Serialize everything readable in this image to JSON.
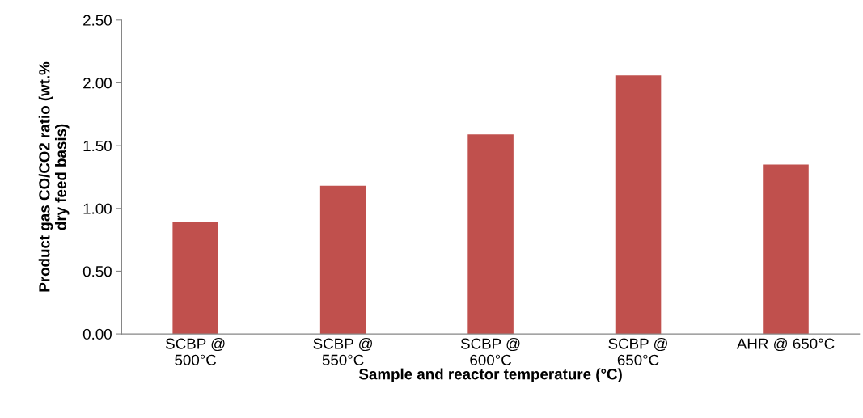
{
  "chart_data": {
    "type": "bar",
    "categories": [
      "SCBP @\n500°C",
      "SCBP @\n550°C",
      "SCBP @\n600°C",
      "SCBP @\n650°C",
      "AHR @ 650°C"
    ],
    "values": [
      0.89,
      1.18,
      1.59,
      2.06,
      1.35
    ],
    "color": "#c0504d",
    "xlabel": "Sample and reactor temperature (°C)",
    "ylabel": "Product gas CO/CO2 ratio (wt.%\ndry feed basis)",
    "ylim": [
      0,
      2.5
    ],
    "yticks": [
      {
        "value": 0,
        "label": "0.00"
      },
      {
        "value": 0.5,
        "label": "0.50"
      },
      {
        "value": 1,
        "label": "1.00"
      },
      {
        "value": 1.5,
        "label": "1.50"
      },
      {
        "value": 2,
        "label": "2.00"
      },
      {
        "value": 2.5,
        "label": "2.50"
      }
    ],
    "grid": false
  }
}
